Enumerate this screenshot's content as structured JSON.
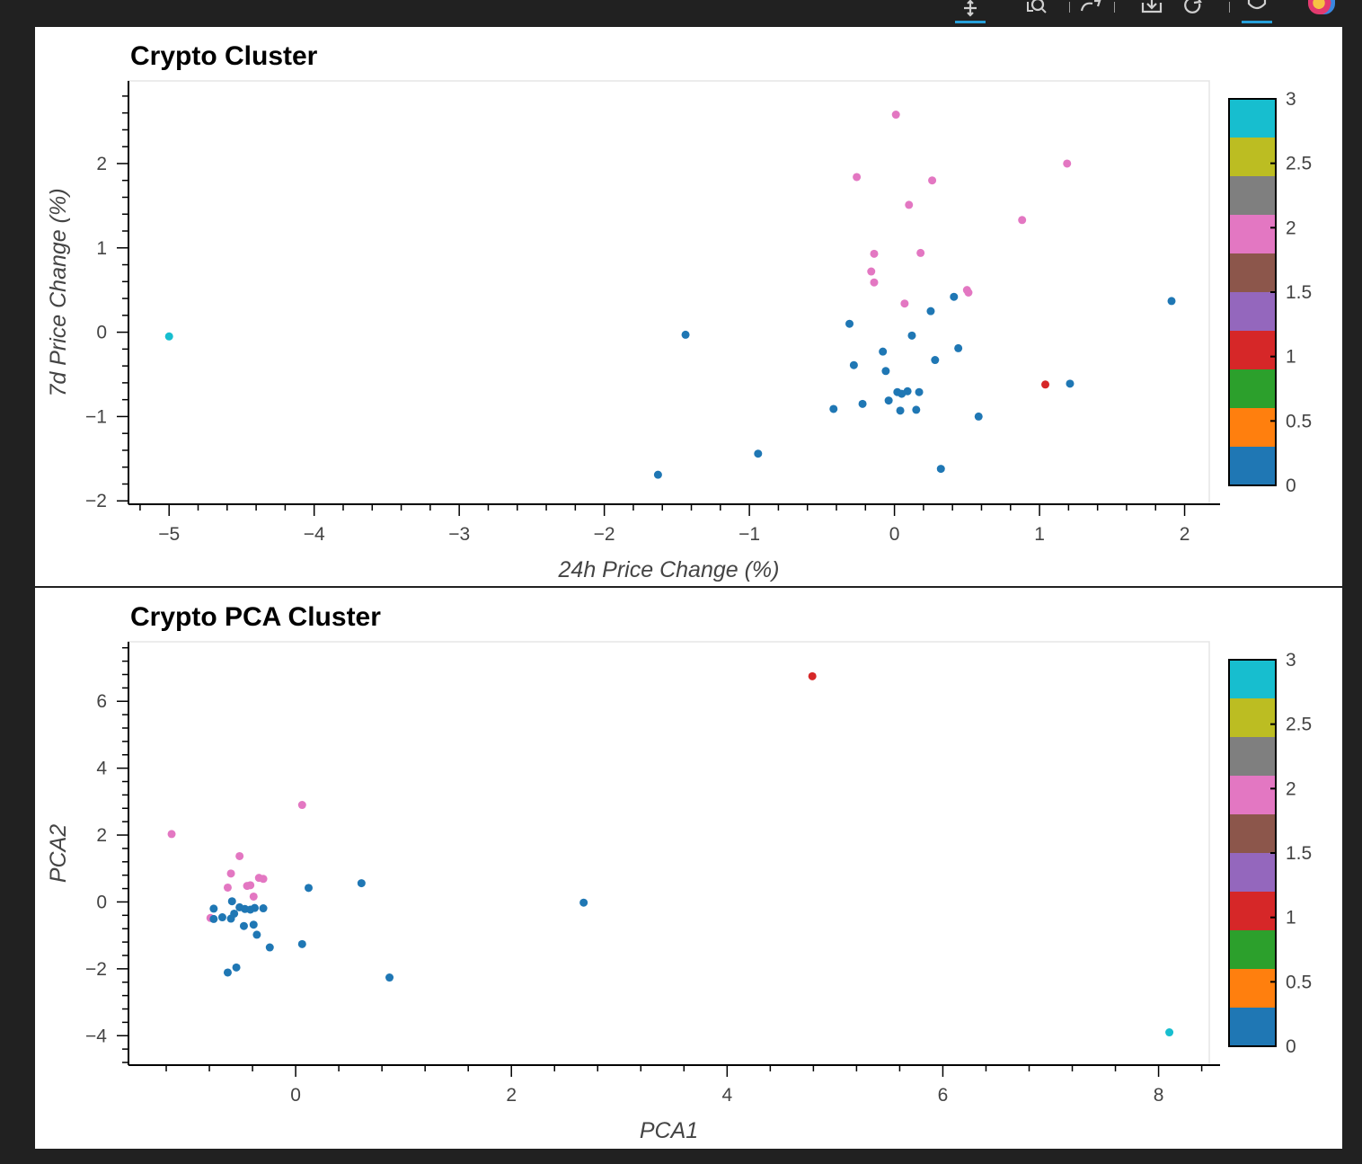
{
  "toolbar": {
    "tools": [
      {
        "icon": "pan-icon",
        "active": true
      },
      {
        "icon": "box-zoom-icon",
        "active": false
      },
      {
        "icon": "wheel-zoom-icon",
        "active": false
      },
      {
        "icon": "save-icon",
        "active": false
      },
      {
        "icon": "reset-icon",
        "active": false
      },
      {
        "icon": "hover-icon",
        "active": true
      }
    ],
    "logo_icon": "bokeh-logo-icon"
  },
  "colors": {
    "colormap": [
      "#1f77b4",
      "#ff7f0e",
      "#2ca02c",
      "#d62728",
      "#9467bd",
      "#8c564b",
      "#e377c2",
      "#7f7f7f",
      "#bcbd22",
      "#17becf"
    ],
    "frame": "#e5e5e5",
    "axis": "#000000"
  },
  "chart_data": [
    {
      "type": "scatter",
      "title": "Crypto Cluster",
      "xlabel": "24h Price Change (%)",
      "ylabel": "7d Price Change (%)",
      "xlim": [
        -5.28,
        2.17
      ],
      "ylim": [
        -2.04,
        2.98
      ],
      "xticks": [
        -5,
        -4,
        -3,
        -2,
        -1,
        0,
        1,
        2
      ],
      "yticks": [
        -2,
        -1,
        0,
        1,
        2
      ],
      "xtick_labels": [
        "−5",
        "−4",
        "−3",
        "−2",
        "−1",
        "0",
        "1",
        "2"
      ],
      "ytick_labels": [
        "−2",
        "−1",
        "0",
        "1",
        "2"
      ],
      "grid": false,
      "colorbar": {
        "range": [
          0,
          3
        ],
        "ticks": [
          "0",
          "0.5",
          "1",
          "1.5",
          "2",
          "2.5",
          "3"
        ]
      },
      "points": [
        {
          "x": 0.01,
          "y": 2.58,
          "c": 2
        },
        {
          "x": -0.26,
          "y": 1.84,
          "c": 2
        },
        {
          "x": 0.26,
          "y": 1.8,
          "c": 2
        },
        {
          "x": 1.19,
          "y": 2.0,
          "c": 2
        },
        {
          "x": 0.1,
          "y": 1.51,
          "c": 2
        },
        {
          "x": 0.88,
          "y": 1.33,
          "c": 2
        },
        {
          "x": -0.14,
          "y": 0.93,
          "c": 2
        },
        {
          "x": 0.18,
          "y": 0.94,
          "c": 2
        },
        {
          "x": -0.16,
          "y": 0.72,
          "c": 2
        },
        {
          "x": -0.14,
          "y": 0.59,
          "c": 2
        },
        {
          "x": 0.5,
          "y": 0.5,
          "c": 2
        },
        {
          "x": 0.51,
          "y": 0.47,
          "c": 2
        },
        {
          "x": 0.07,
          "y": 0.34,
          "c": 2
        },
        {
          "x": -5.0,
          "y": -0.05,
          "c": 3
        },
        {
          "x": 1.04,
          "y": -0.62,
          "c": 1
        },
        {
          "x": 1.91,
          "y": 0.37,
          "c": 0
        },
        {
          "x": 0.41,
          "y": 0.42,
          "c": 0
        },
        {
          "x": 0.25,
          "y": 0.25,
          "c": 0
        },
        {
          "x": -0.31,
          "y": 0.1,
          "c": 0
        },
        {
          "x": -1.44,
          "y": -0.03,
          "c": 0
        },
        {
          "x": 0.12,
          "y": -0.04,
          "c": 0
        },
        {
          "x": -0.08,
          "y": -0.23,
          "c": 0
        },
        {
          "x": 0.44,
          "y": -0.19,
          "c": 0
        },
        {
          "x": 0.28,
          "y": -0.33,
          "c": 0
        },
        {
          "x": -0.28,
          "y": -0.39,
          "c": 0
        },
        {
          "x": -0.06,
          "y": -0.46,
          "c": 0
        },
        {
          "x": 1.21,
          "y": -0.61,
          "c": 0
        },
        {
          "x": 0.02,
          "y": -0.71,
          "c": 0
        },
        {
          "x": 0.05,
          "y": -0.73,
          "c": 0
        },
        {
          "x": 0.09,
          "y": -0.7,
          "c": 0
        },
        {
          "x": 0.17,
          "y": -0.71,
          "c": 0
        },
        {
          "x": -0.04,
          "y": -0.81,
          "c": 0
        },
        {
          "x": -0.22,
          "y": -0.85,
          "c": 0
        },
        {
          "x": -0.42,
          "y": -0.91,
          "c": 0
        },
        {
          "x": 0.04,
          "y": -0.93,
          "c": 0
        },
        {
          "x": 0.15,
          "y": -0.92,
          "c": 0
        },
        {
          "x": 0.58,
          "y": -1.0,
          "c": 0
        },
        {
          "x": -0.94,
          "y": -1.44,
          "c": 0
        },
        {
          "x": 0.32,
          "y": -1.62,
          "c": 0
        },
        {
          "x": -1.63,
          "y": -1.69,
          "c": 0
        }
      ]
    },
    {
      "type": "scatter",
      "title": "Crypto PCA Cluster",
      "xlabel": "PCA1",
      "ylabel": "PCA2",
      "xlim": [
        -1.55,
        8.47
      ],
      "ylim": [
        -4.88,
        7.78
      ],
      "xticks": [
        0,
        2,
        4,
        6,
        8
      ],
      "yticks": [
        -4,
        -2,
        0,
        2,
        4,
        6
      ],
      "xtick_labels": [
        "0",
        "2",
        "4",
        "6",
        "8"
      ],
      "ytick_labels": [
        "−4",
        "−2",
        "0",
        "2",
        "4",
        "6"
      ],
      "grid": false,
      "colorbar": {
        "range": [
          0,
          3
        ],
        "ticks": [
          "0",
          "0.5",
          "1",
          "1.5",
          "2",
          "2.5",
          "3"
        ]
      },
      "points": [
        {
          "x": -1.15,
          "y": 2.03,
          "c": 2
        },
        {
          "x": 0.06,
          "y": 2.9,
          "c": 2
        },
        {
          "x": -0.52,
          "y": 1.37,
          "c": 2
        },
        {
          "x": -0.6,
          "y": 0.85,
          "c": 2
        },
        {
          "x": -0.34,
          "y": 0.72,
          "c": 2
        },
        {
          "x": -0.3,
          "y": 0.69,
          "c": 2
        },
        {
          "x": -0.63,
          "y": 0.43,
          "c": 2
        },
        {
          "x": -0.45,
          "y": 0.48,
          "c": 2
        },
        {
          "x": -0.42,
          "y": 0.5,
          "c": 2
        },
        {
          "x": -0.39,
          "y": 0.16,
          "c": 2
        },
        {
          "x": -0.79,
          "y": -0.48,
          "c": 2
        },
        {
          "x": 4.79,
          "y": 6.75,
          "c": 1
        },
        {
          "x": 8.1,
          "y": -3.9,
          "c": 3
        },
        {
          "x": 0.12,
          "y": 0.42,
          "c": 0
        },
        {
          "x": 0.61,
          "y": 0.56,
          "c": 0
        },
        {
          "x": 2.67,
          "y": -0.02,
          "c": 0
        },
        {
          "x": -0.59,
          "y": 0.02,
          "c": 0
        },
        {
          "x": -0.76,
          "y": -0.2,
          "c": 0
        },
        {
          "x": -0.52,
          "y": -0.16,
          "c": 0
        },
        {
          "x": -0.47,
          "y": -0.21,
          "c": 0
        },
        {
          "x": -0.42,
          "y": -0.23,
          "c": 0
        },
        {
          "x": -0.38,
          "y": -0.18,
          "c": 0
        },
        {
          "x": -0.3,
          "y": -0.19,
          "c": 0
        },
        {
          "x": -0.57,
          "y": -0.35,
          "c": 0
        },
        {
          "x": -0.68,
          "y": -0.46,
          "c": 0
        },
        {
          "x": -0.6,
          "y": -0.5,
          "c": 0
        },
        {
          "x": -0.76,
          "y": -0.51,
          "c": 0
        },
        {
          "x": -0.48,
          "y": -0.72,
          "c": 0
        },
        {
          "x": -0.39,
          "y": -0.68,
          "c": 0
        },
        {
          "x": -0.36,
          "y": -0.98,
          "c": 0
        },
        {
          "x": -0.24,
          "y": -1.36,
          "c": 0
        },
        {
          "x": 0.06,
          "y": -1.26,
          "c": 0
        },
        {
          "x": -0.55,
          "y": -1.96,
          "c": 0
        },
        {
          "x": -0.63,
          "y": -2.11,
          "c": 0
        },
        {
          "x": 0.87,
          "y": -2.26,
          "c": 0
        }
      ]
    }
  ]
}
